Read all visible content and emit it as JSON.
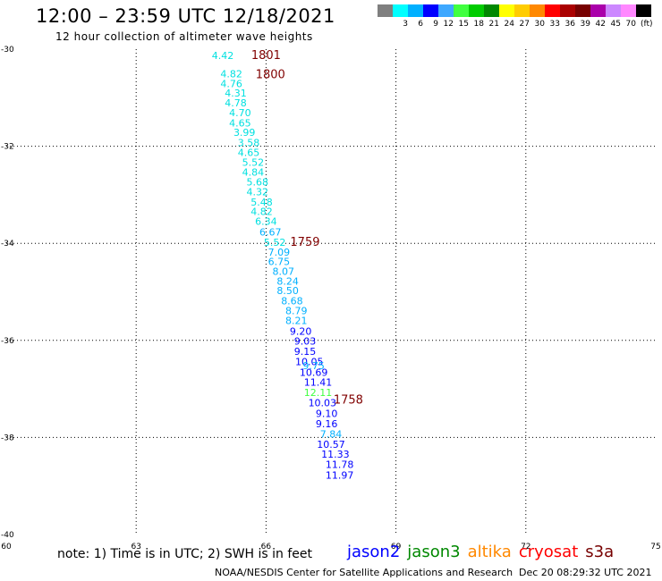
{
  "header": {
    "title": "12:00 – 23:59 UTC 12/18/2021",
    "subtitle": "12 hour collection of altimeter wave heights"
  },
  "legend": {
    "unit": "(ft)",
    "items": [
      {
        "label": "",
        "color": "#7f7f7f"
      },
      {
        "label": "3",
        "color": "#00ffff"
      },
      {
        "label": "6",
        "color": "#00b0ff"
      },
      {
        "label": "9",
        "color": "#0000ff"
      },
      {
        "label": "12",
        "color": "#3ea8ff"
      },
      {
        "label": "15",
        "color": "#40ff40"
      },
      {
        "label": "18",
        "color": "#00cc00"
      },
      {
        "label": "21",
        "color": "#008800"
      },
      {
        "label": "24",
        "color": "#ffff00"
      },
      {
        "label": "27",
        "color": "#ffcc00"
      },
      {
        "label": "30",
        "color": "#ff8800"
      },
      {
        "label": "33",
        "color": "#ff0000"
      },
      {
        "label": "36",
        "color": "#aa0000"
      },
      {
        "label": "39",
        "color": "#770000"
      },
      {
        "label": "42",
        "color": "#aa00aa"
      },
      {
        "label": "45",
        "color": "#cc88ff"
      },
      {
        "label": "70",
        "color": "#ff88ff"
      },
      {
        "label": "",
        "color": "#000000"
      }
    ]
  },
  "axes": {
    "x_ticks": [
      "60",
      "63",
      "66",
      "69",
      "72",
      "75"
    ],
    "y_ticks": [
      "-30",
      "-32",
      "-34",
      "-36",
      "-38",
      "-40"
    ]
  },
  "track_labels": [
    {
      "text": "1801",
      "lon": 66.0,
      "lat": -30.2,
      "color": "#800000"
    },
    {
      "text": "1800",
      "lon": 66.1,
      "lat": -30.6,
      "color": "#800000"
    },
    {
      "text": "1759",
      "lon": 66.9,
      "lat": -34.05,
      "color": "#800000"
    },
    {
      "text": "1758",
      "lon": 67.9,
      "lat": -37.3,
      "color": "#800000"
    }
  ],
  "swh_points": [
    {
      "v": "4.42",
      "lon": 65.0,
      "lat": -30.2,
      "color": "#00e0e0"
    },
    {
      "v": "4.82",
      "lon": 65.2,
      "lat": -30.58,
      "color": "#00e0e0"
    },
    {
      "v": "4.76",
      "lon": 65.2,
      "lat": -30.78,
      "color": "#00e0e0"
    },
    {
      "v": "4.31",
      "lon": 65.3,
      "lat": -30.98,
      "color": "#00e0e0"
    },
    {
      "v": "4.78",
      "lon": 65.3,
      "lat": -31.18,
      "color": "#00e0e0"
    },
    {
      "v": "4.70",
      "lon": 65.4,
      "lat": -31.38,
      "color": "#00e0e0"
    },
    {
      "v": "4.65",
      "lon": 65.4,
      "lat": -31.59,
      "color": "#00e0e0"
    },
    {
      "v": "3.99",
      "lon": 65.5,
      "lat": -31.79,
      "color": "#00e0e0"
    },
    {
      "v": "3.58",
      "lon": 65.6,
      "lat": -32.0,
      "color": "#00e0e0"
    },
    {
      "v": "4.65",
      "lon": 65.6,
      "lat": -32.2,
      "color": "#00e0e0"
    },
    {
      "v": "5.52",
      "lon": 65.7,
      "lat": -32.4,
      "color": "#00e0e0"
    },
    {
      "v": "4.84",
      "lon": 65.7,
      "lat": -32.61,
      "color": "#00e0e0"
    },
    {
      "v": "5.68",
      "lon": 65.8,
      "lat": -32.81,
      "color": "#00e0e0"
    },
    {
      "v": "4.32",
      "lon": 65.8,
      "lat": -33.01,
      "color": "#00e0e0"
    },
    {
      "v": "5.48",
      "lon": 65.9,
      "lat": -33.22,
      "color": "#00e0e0"
    },
    {
      "v": "4.82",
      "lon": 65.9,
      "lat": -33.42,
      "color": "#00e0e0"
    },
    {
      "v": "6.34",
      "lon": 66.0,
      "lat": -33.62,
      "color": "#00e0e0"
    },
    {
      "v": "6.67",
      "lon": 66.1,
      "lat": -33.84,
      "color": "#00b0ff"
    },
    {
      "v": "5.52",
      "lon": 66.2,
      "lat": -34.05,
      "color": "#00e0e0"
    },
    {
      "v": "7.09",
      "lon": 66.3,
      "lat": -34.25,
      "color": "#00b0ff"
    },
    {
      "v": "6.75",
      "lon": 66.3,
      "lat": -34.45,
      "color": "#00b0ff"
    },
    {
      "v": "8.07",
      "lon": 66.4,
      "lat": -34.65,
      "color": "#00b0ff"
    },
    {
      "v": "8.24",
      "lon": 66.5,
      "lat": -34.85,
      "color": "#00b0ff"
    },
    {
      "v": "8.50",
      "lon": 66.5,
      "lat": -35.05,
      "color": "#00b0ff"
    },
    {
      "v": "8.68",
      "lon": 66.6,
      "lat": -35.26,
      "color": "#00b0ff"
    },
    {
      "v": "8.79",
      "lon": 66.7,
      "lat": -35.46,
      "color": "#00b0ff"
    },
    {
      "v": "8.21",
      "lon": 66.7,
      "lat": -35.66,
      "color": "#00b0ff"
    },
    {
      "v": "9.20",
      "lon": 66.8,
      "lat": -35.88,
      "color": "#0000ff"
    },
    {
      "v": "9.03",
      "lon": 66.9,
      "lat": -36.09,
      "color": "#0000ff"
    },
    {
      "v": "9.15",
      "lon": 66.9,
      "lat": -36.3,
      "color": "#0000ff"
    },
    {
      "v": "10.05",
      "lon": 67.0,
      "lat": -36.51,
      "color": "#0000ff"
    },
    {
      "v": "9.75",
      "lon": 67.1,
      "lat": -36.59,
      "color": "#00b0ff"
    },
    {
      "v": "10.69",
      "lon": 67.1,
      "lat": -36.73,
      "color": "#0000ff"
    },
    {
      "v": "11.41",
      "lon": 67.2,
      "lat": -36.93,
      "color": "#0000ff"
    },
    {
      "v": "12.11",
      "lon": 67.2,
      "lat": -37.15,
      "color": "#40ff40"
    },
    {
      "v": "10.03",
      "lon": 67.3,
      "lat": -37.36,
      "color": "#0000ff"
    },
    {
      "v": "9.10",
      "lon": 67.4,
      "lat": -37.58,
      "color": "#0000ff"
    },
    {
      "v": "9.16",
      "lon": 67.4,
      "lat": -37.79,
      "color": "#0000ff"
    },
    {
      "v": "7.84",
      "lon": 67.5,
      "lat": -38.0,
      "color": "#00b0ff"
    },
    {
      "v": "10.57",
      "lon": 67.5,
      "lat": -38.21,
      "color": "#0000ff"
    },
    {
      "v": "11.33",
      "lon": 67.6,
      "lat": -38.42,
      "color": "#0000ff"
    },
    {
      "v": "11.78",
      "lon": 67.7,
      "lat": -38.63,
      "color": "#0000ff"
    },
    {
      "v": "11.97",
      "lon": 67.7,
      "lat": -38.85,
      "color": "#0000ff"
    }
  ],
  "note": "note:  1) Time is in UTC; 2) SWH is in feet",
  "satellites": [
    {
      "name": "jason2",
      "color": "#0000ff"
    },
    {
      "name": "jason3",
      "color": "#008800"
    },
    {
      "name": "altika",
      "color": "#ff8800"
    },
    {
      "name": "cryosat",
      "color": "#ff0000"
    },
    {
      "name": "s3a",
      "color": "#770000"
    }
  ],
  "footer": {
    "credit": "NOAA/NESDIS Center for Satellite Applications and Research",
    "timestamp": "Dec 20 08:29:32 UTC 2021"
  }
}
